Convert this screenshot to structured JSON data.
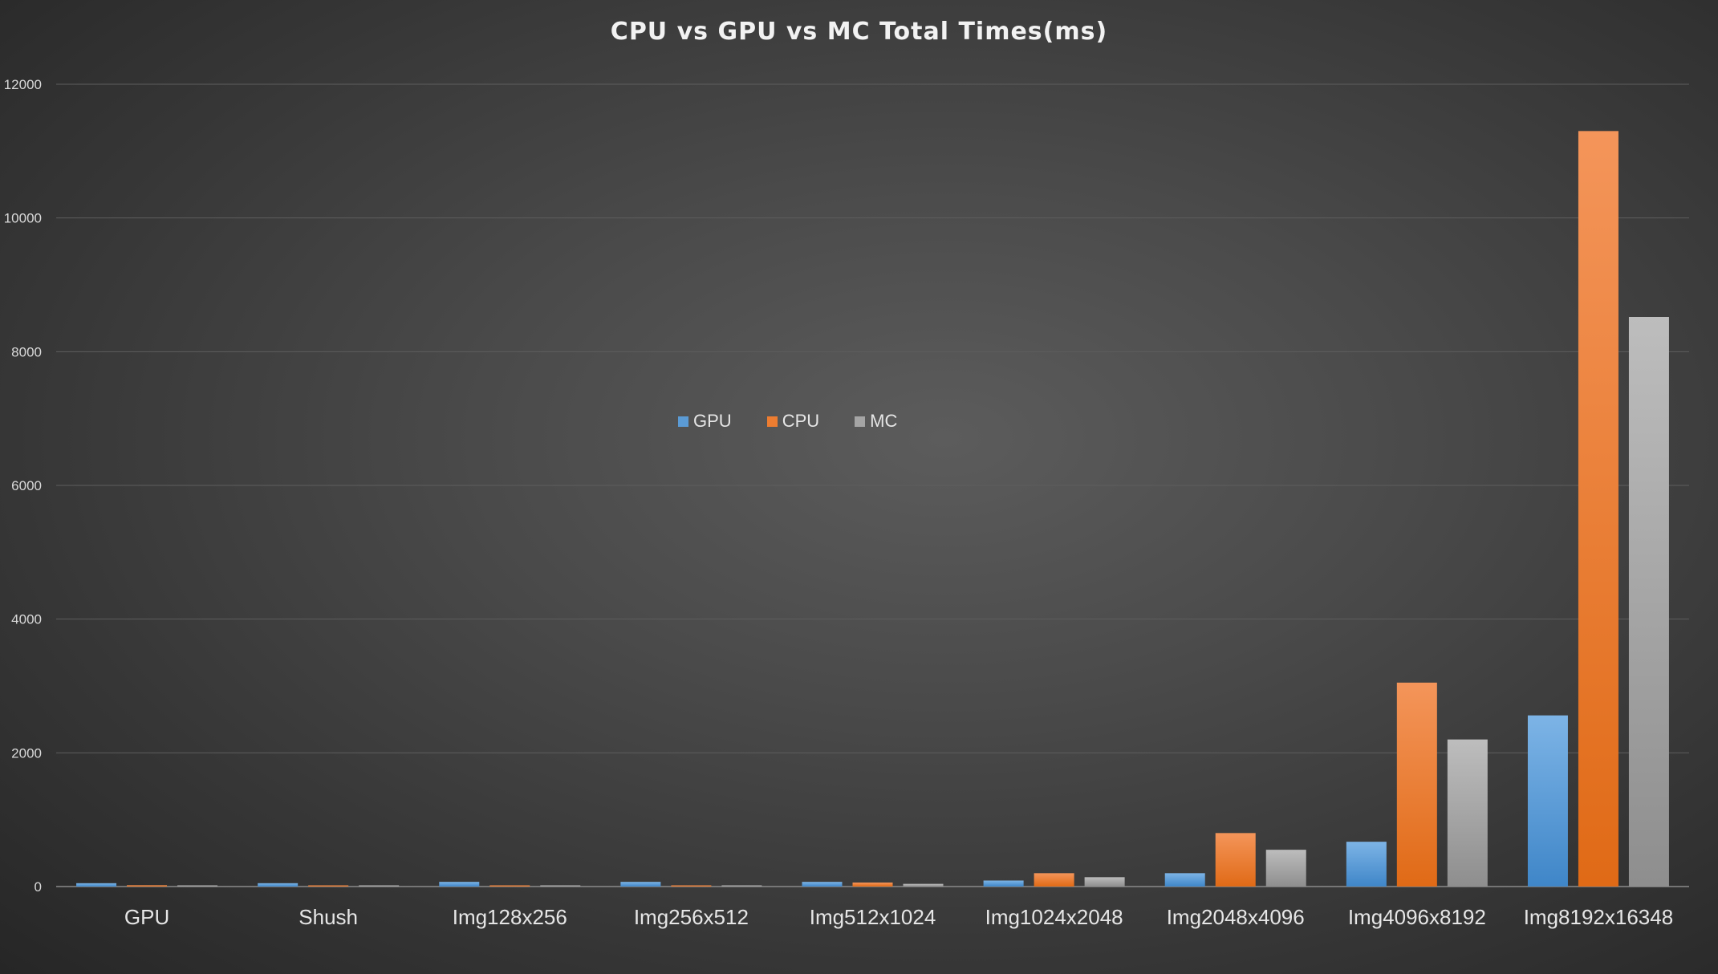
{
  "chart_data": {
    "type": "bar",
    "title": "CPU vs GPU vs MC  Total Times(ms)",
    "xlabel": "",
    "ylabel": "",
    "ylim": [
      0,
      12000
    ],
    "yticks": [
      "0",
      "2000",
      "4000",
      "6000",
      "8000",
      "10000",
      "12000"
    ],
    "grid": true,
    "legend_position": "center",
    "categories": [
      "GPU",
      "Shush",
      "Img128x256",
      "Img256x512",
      "Img512x1024",
      "Img1024x2048",
      "Img2048x4096",
      "Img4096x8192",
      "Img8192x16348"
    ],
    "series": [
      {
        "name": "GPU",
        "color": "#5b9bd5",
        "values": [
          50,
          50,
          70,
          70,
          70,
          90,
          200,
          670,
          2560
        ]
      },
      {
        "name": "CPU",
        "color": "#ed7d31",
        "values": [
          20,
          10,
          10,
          10,
          60,
          200,
          800,
          3050,
          11300
        ]
      },
      {
        "name": "MC",
        "color": "#a5a5a5",
        "values": [
          10,
          10,
          10,
          10,
          40,
          140,
          550,
          2200,
          8520
        ]
      }
    ]
  }
}
